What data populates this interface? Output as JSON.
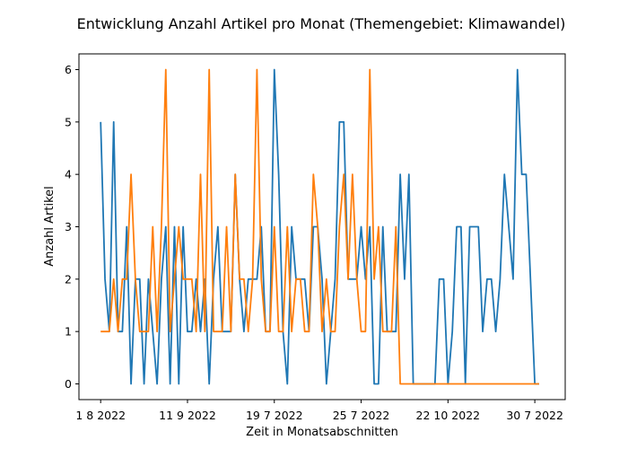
{
  "chart_data": {
    "type": "line",
    "title": "Entwicklung Anzahl Artikel pro Monat (Themengebiet: Klimawandel)",
    "xlabel": "Zeit in Monatsabschnitten",
    "ylabel": "Anzahl Artikel",
    "xtick_labels": [
      "1 8 2022",
      "11 9 2022",
      "19 7 2022",
      "25 7 2022",
      "22 10 2022",
      "30 7 2022"
    ],
    "xtick_positions": [
      0,
      20,
      40,
      60,
      80,
      100
    ],
    "yticks": [
      0,
      1,
      2,
      3,
      4,
      5,
      6
    ],
    "ylim": [
      -0.3,
      6.3
    ],
    "xlim": [
      -5,
      107
    ],
    "grid": false,
    "series": [
      {
        "color": "#1f77b4",
        "values": [
          5,
          2,
          1,
          5,
          1,
          1,
          3,
          0,
          2,
          2,
          0,
          2,
          1,
          0,
          2,
          3,
          0,
          3,
          0,
          3,
          1,
          1,
          2,
          1,
          2,
          0,
          2,
          3,
          1,
          1,
          1,
          4,
          2,
          1,
          2,
          2,
          2,
          3,
          1,
          1,
          6,
          4,
          1,
          0,
          3,
          2,
          2,
          2,
          1,
          3,
          3,
          2,
          0,
          1,
          2,
          5,
          5,
          2,
          2,
          2,
          3,
          2,
          3,
          0,
          0,
          3,
          1,
          1,
          1,
          4,
          2,
          4,
          0,
          0,
          0,
          0,
          0,
          0,
          2,
          2,
          0,
          1,
          3,
          3,
          0,
          3,
          3,
          3,
          1,
          2,
          2,
          1,
          2,
          4,
          3,
          2,
          6,
          4,
          4,
          2,
          0,
          0
        ]
      },
      {
        "color": "#ff7f0e",
        "values": [
          1,
          1,
          1,
          2,
          1,
          2,
          2,
          4,
          2,
          1,
          1,
          1,
          3,
          1,
          3,
          6,
          1,
          2,
          3,
          2,
          2,
          2,
          1,
          4,
          1,
          6,
          1,
          1,
          1,
          3,
          1,
          4,
          2,
          2,
          1,
          2,
          6,
          2,
          1,
          1,
          3,
          1,
          1,
          3,
          1,
          2,
          2,
          1,
          1,
          4,
          3,
          1,
          2,
          1,
          1,
          3,
          4,
          2,
          4,
          2,
          1,
          1,
          6,
          2,
          3,
          1,
          1,
          1,
          3,
          0,
          0,
          0,
          0,
          0,
          0,
          0,
          0,
          0,
          0,
          0,
          0,
          0,
          0,
          0,
          0,
          0,
          0,
          0,
          0,
          0,
          0,
          0,
          0,
          0,
          0,
          0,
          0,
          0,
          0,
          0,
          0,
          0
        ]
      }
    ]
  }
}
